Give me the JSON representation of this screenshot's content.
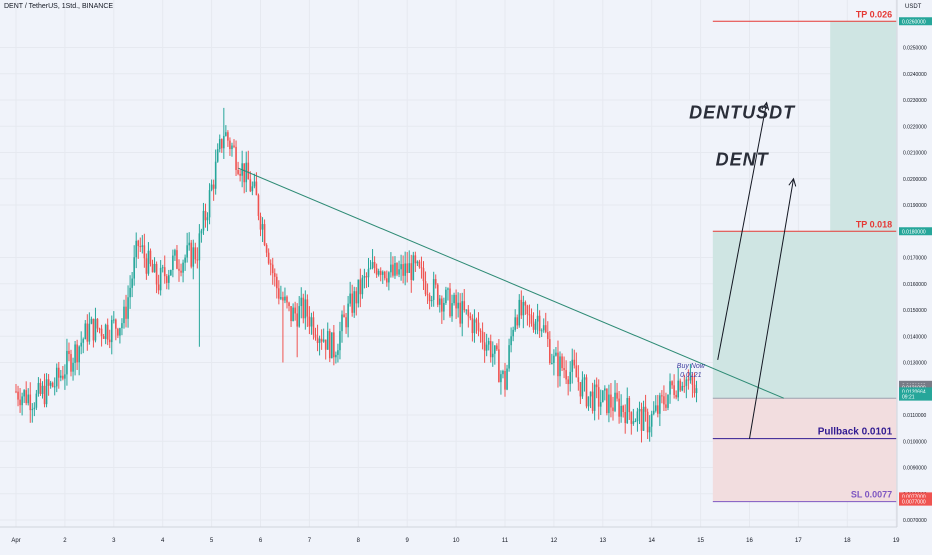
{
  "header": {
    "symbol_title": "DENT / TetherUS, 1Std., BINANCE"
  },
  "chart_data": {
    "type": "candlestick",
    "price_axis_label": "USDT",
    "colors": {
      "up": "#26a69a",
      "down": "#ef5350",
      "trendline": "#2e8b75",
      "target": "#e53935",
      "pullback": "#311b92",
      "stop": "#7e57c2",
      "annotation": "#131722",
      "price_tag": "#26a69a",
      "grid": "#e6e9f0",
      "background": "#f0f3fa"
    },
    "ylim": [
      0.0069,
      0.0267
    ],
    "x_ticks": [
      {
        "label": "Apr",
        "day": 1.0
      },
      {
        "label": "2",
        "day": 2.0
      },
      {
        "label": "3",
        "day": 3.0
      },
      {
        "label": "4",
        "day": 4.0
      },
      {
        "label": "5",
        "day": 5.0
      },
      {
        "label": "6",
        "day": 6.0
      },
      {
        "label": "7",
        "day": 7.0
      },
      {
        "label": "8",
        "day": 8.0
      },
      {
        "label": "9",
        "day": 9.0
      },
      {
        "label": "10",
        "day": 10.0
      },
      {
        "label": "11",
        "day": 11.0
      },
      {
        "label": "12",
        "day": 12.0
      },
      {
        "label": "13",
        "day": 13.0
      },
      {
        "label": "14",
        "day": 14.0
      },
      {
        "label": "15",
        "day": 15.0
      },
      {
        "label": "16",
        "day": 16.0
      },
      {
        "label": "17",
        "day": 17.0
      },
      {
        "label": "18",
        "day": 18.0
      },
      {
        "label": "19",
        "day": 19.0
      }
    ],
    "y_ticks": [
      {
        "label": "0.0250000",
        "value": 0.025
      },
      {
        "label": "0.0240000",
        "value": 0.024
      },
      {
        "label": "0.0230000",
        "value": 0.023
      },
      {
        "label": "0.0220000",
        "value": 0.022
      },
      {
        "label": "0.0210000",
        "value": 0.021
      },
      {
        "label": "0.0200000",
        "value": 0.02
      },
      {
        "label": "0.0190000",
        "value": 0.019
      },
      {
        "label": "0.0170000",
        "value": 0.017
      },
      {
        "label": "0.0160000",
        "value": 0.016
      },
      {
        "label": "0.0150000",
        "value": 0.015
      },
      {
        "label": "0.0140000",
        "value": 0.014
      },
      {
        "label": "0.0130000",
        "value": 0.013
      },
      {
        "label": "0.0110000",
        "value": 0.011
      },
      {
        "label": "0.0100000",
        "value": 0.01
      },
      {
        "label": "0.0090000",
        "value": 0.009
      },
      {
        "label": "0.0080000",
        "value": 0.008
      },
      {
        "label": "0.0070000",
        "value": 0.007
      }
    ],
    "price_tags": [
      {
        "label": "0.0260000",
        "value": 0.026,
        "color": "#26a69a"
      },
      {
        "label": "0.0180000",
        "value": 0.018,
        "color": "#26a69a"
      },
      {
        "label": "0.0121000",
        "value": 0.01215,
        "color": "#787b86"
      },
      {
        "label": "0.0121000",
        "value": 0.01205,
        "color": "#787b86"
      },
      {
        "label": "0.0120664",
        "value": 0.0119,
        "color": "#26a69a"
      },
      {
        "label": "09:21",
        "value": 0.0117,
        "color": "#26a69a"
      },
      {
        "label": "0.0077000",
        "value": 0.0079,
        "color": "#ef5350"
      },
      {
        "label": "0.0077000",
        "value": 0.0077,
        "color": "#ef5350"
      }
    ],
    "anchors": [
      [
        1.0,
        0.0119
      ],
      [
        1.4,
        0.0116
      ],
      [
        1.8,
        0.0122
      ],
      [
        2.2,
        0.0134
      ],
      [
        2.5,
        0.0143
      ],
      [
        2.9,
        0.0143
      ],
      [
        3.2,
        0.0146
      ],
      [
        3.5,
        0.0175
      ],
      [
        3.9,
        0.016
      ],
      [
        4.2,
        0.0168
      ],
      [
        4.7,
        0.0172
      ],
      [
        4.9,
        0.0188
      ],
      [
        5.25,
        0.0218
      ],
      [
        5.55,
        0.0207
      ],
      [
        5.9,
        0.0193
      ],
      [
        6.1,
        0.0178
      ],
      [
        6.3,
        0.016
      ],
      [
        6.6,
        0.0148
      ],
      [
        6.9,
        0.015
      ],
      [
        7.2,
        0.0142
      ],
      [
        7.5,
        0.0135
      ],
      [
        7.8,
        0.015
      ],
      [
        8.1,
        0.016
      ],
      [
        8.4,
        0.0168
      ],
      [
        8.7,
        0.0163
      ],
      [
        9.1,
        0.0166
      ],
      [
        9.5,
        0.0158
      ],
      [
        9.9,
        0.0152
      ],
      [
        10.3,
        0.0146
      ],
      [
        10.7,
        0.0136
      ],
      [
        11.0,
        0.0122
      ],
      [
        11.2,
        0.015
      ],
      [
        11.5,
        0.0146
      ],
      [
        11.7,
        0.0148
      ],
      [
        12.0,
        0.013
      ],
      [
        12.4,
        0.0126
      ],
      [
        12.7,
        0.0117
      ],
      [
        13.1,
        0.0115
      ],
      [
        13.5,
        0.0112
      ],
      [
        13.9,
        0.0107
      ],
      [
        14.1,
        0.0111
      ],
      [
        14.4,
        0.012
      ],
      [
        14.65,
        0.0125
      ],
      [
        14.9,
        0.0118
      ]
    ],
    "trendline": {
      "from": {
        "day": 5.55,
        "value": 0.0204
      },
      "to": {
        "day": 16.7,
        "value": 0.01164
      }
    },
    "positions": [
      {
        "name": "long-1",
        "day_start": 15.25,
        "day_end": 19.0,
        "entry": 0.01164,
        "target": 0.018,
        "stop": 0.0077
      },
      {
        "name": "long-2",
        "day_start": 17.65,
        "day_end": 19.0,
        "entry": 0.018,
        "target": 0.026,
        "stop": 0.01164
      }
    ],
    "levels": [
      {
        "name": "tp-0026",
        "label": "TP 0.026",
        "value": 0.026,
        "day_start": 15.25,
        "day_end": 19.0,
        "color": "#e53935"
      },
      {
        "name": "tp-0018",
        "label": "TP 0.018",
        "value": 0.018,
        "day_start": 15.25,
        "day_end": 19.0,
        "color": "#e53935"
      },
      {
        "name": "pullback",
        "label": "Pullback 0.0101",
        "value": 0.0101,
        "day_start": 15.25,
        "day_end": 19.0,
        "color": "#311b92"
      },
      {
        "name": "sl",
        "label": "SL 0.0077",
        "value": 0.0077,
        "day_start": 15.25,
        "day_end": 19.0,
        "color": "#7e57c2"
      }
    ],
    "arrows": [
      {
        "from": {
          "day": 15.35,
          "value": 0.0131
        },
        "to": {
          "day": 16.35,
          "value": 0.0229
        }
      },
      {
        "from": {
          "day": 16.0,
          "value": 0.0101
        },
        "to": {
          "day": 16.9,
          "value": 0.02
        }
      }
    ],
    "annotations": {
      "buy_now": {
        "line1": "Buy Now",
        "line2": "0.0121",
        "day": 14.8,
        "value": 0.0128
      },
      "title_main": {
        "text": "DENTUSDT",
        "day": 15.85,
        "value": 0.0223
      },
      "title_sub": {
        "text": "DENT",
        "day": 15.85,
        "value": 0.0205
      }
    }
  }
}
